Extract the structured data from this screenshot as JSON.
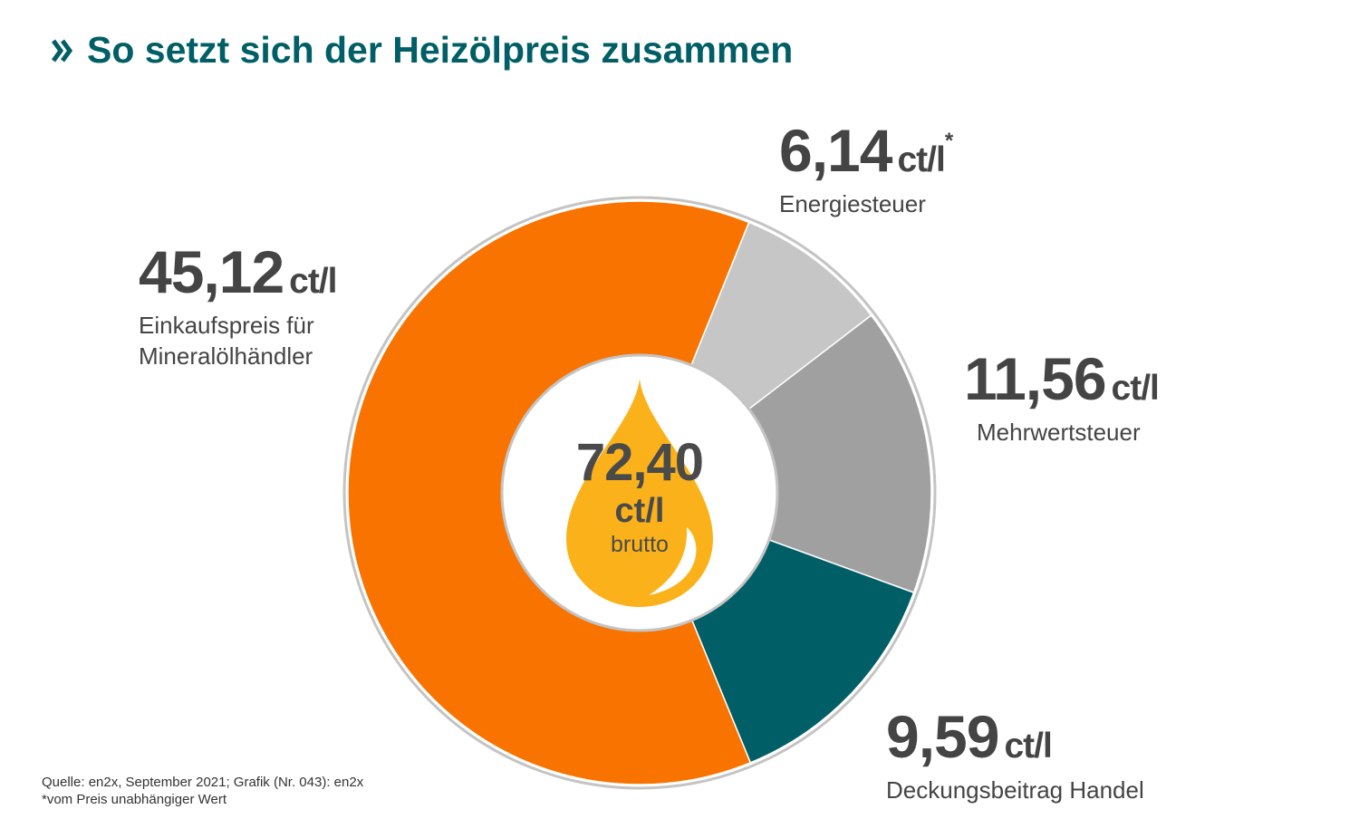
{
  "title": "So setzt sich der Heizölpreis zusammen",
  "colors": {
    "accent": "#005f66",
    "einkauf": "#f97300",
    "energie": "#c6c6c6",
    "mwst": "#a0a0a0",
    "deckung": "#005f66",
    "drop": "#fbb21a",
    "text": "#444444"
  },
  "chart_data": {
    "type": "pie",
    "variant": "donut",
    "title": "So setzt sich der Heizölpreis zusammen",
    "unit": "ct/l",
    "total": {
      "value": "72,40",
      "unit": "ct/l",
      "note": "brutto"
    },
    "slices": [
      {
        "name": "Energiesteuer",
        "value": 6.14,
        "value_label": "6,14",
        "unit": "ct/l",
        "asterisk": "*",
        "color": "#c6c6c6"
      },
      {
        "name": "Mehrwertsteuer",
        "value": 11.56,
        "value_label": "11,56",
        "unit": "ct/l",
        "color": "#a0a0a0"
      },
      {
        "name": "Deckungsbeitrag Handel",
        "value": 9.59,
        "value_label": "9,59",
        "unit": "ct/l",
        "color": "#005f66"
      },
      {
        "name": "Einkaufspreis für Mineralölhändler",
        "value": 45.12,
        "value_label": "45,12",
        "unit": "ct/l",
        "label_lines": [
          "Einkaufspreis für",
          "Mineralölhändler"
        ],
        "color": "#f97300"
      }
    ]
  },
  "footer": {
    "source": "Quelle: en2x, September 2021; Grafik (Nr. 043): en2x",
    "note": "*vom Preis unabhängiger Wert"
  }
}
